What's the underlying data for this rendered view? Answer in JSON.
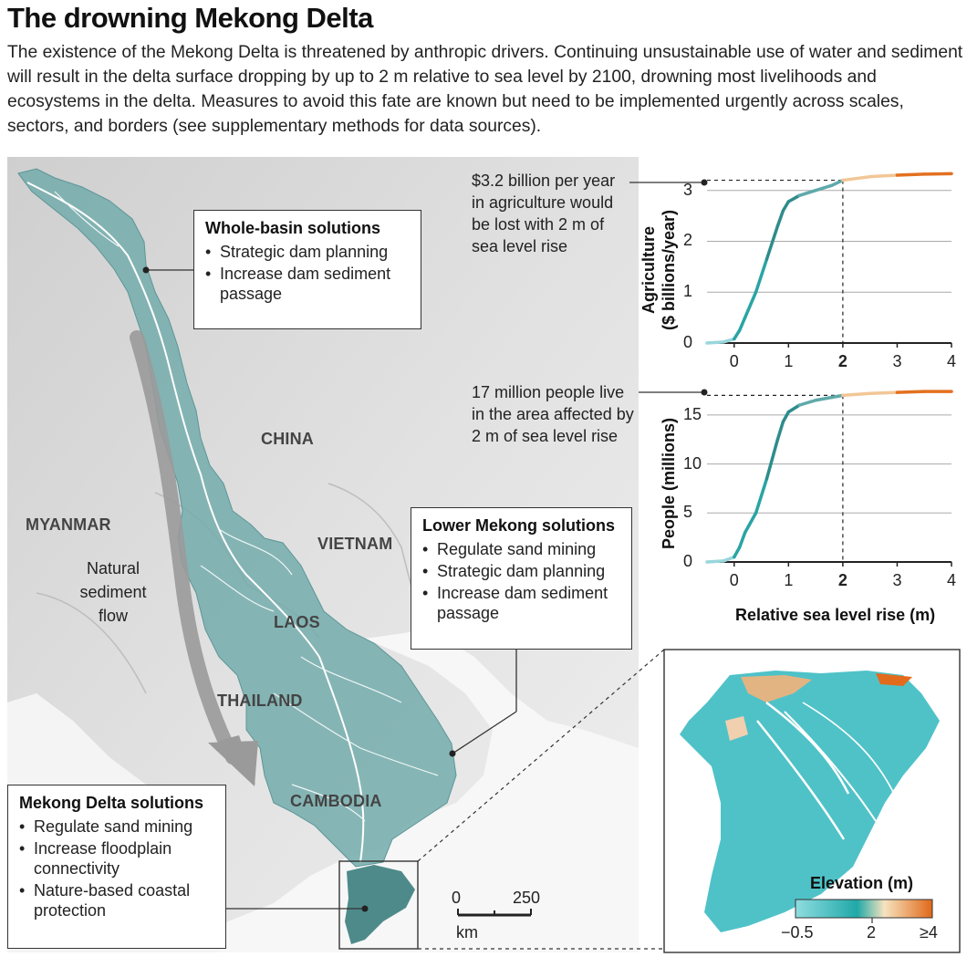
{
  "header": {
    "title": "The drowning Mekong Delta",
    "intro": "The existence of the Mekong Delta is threatened by anthropic drivers. Continuing unsustainable use of water and sediment will result in the delta surface dropping by up to 2 m relative  to sea level by 2100, drowning most livelihoods and ecosystems in the delta. Measures to avoid this fate are known but need to be implemented urgently across scales, sectors, and borders (see supplementary methods for data sources)."
  },
  "map": {
    "countries": {
      "china": "CHINA",
      "myanmar": "MYANMAR",
      "vietnam": "VIETNAM",
      "laos": "LAOS",
      "thailand": "THAILAND",
      "cambodia": "CAMBODIA"
    },
    "flow_label": [
      "Natural",
      "sediment",
      "flow"
    ],
    "scale": {
      "zero": "0",
      "max": "250",
      "unit": "km"
    },
    "colors": {
      "basin": "#6fa7a7",
      "land": "#dcdcdc",
      "arrow": "#9a9a9a",
      "delta": "#4f8a8a"
    }
  },
  "callouts": {
    "whole_basin": {
      "title": "Whole-basin solutions",
      "items": [
        "Strategic dam planning",
        "Increase dam sediment passage"
      ]
    },
    "lower_mekong": {
      "title": "Lower Mekong solutions",
      "items": [
        "Regulate sand mining",
        "Strategic dam planning",
        "Increase dam sediment passage"
      ]
    },
    "delta": {
      "title": "Mekong Delta solutions",
      "items": [
        "Regulate sand mining",
        "Increase floodplain connectivity",
        "Nature-based coastal protection"
      ]
    }
  },
  "charts": {
    "agriculture_note": [
      "$3.2 billion per year",
      "in agriculture would",
      "be lost with 2 m of",
      "sea level rise"
    ],
    "people_note": [
      "17 million people live",
      "in the area affected by",
      "2 m of sea level rise"
    ],
    "agriculture_ylabel": [
      "Agriculture",
      "($ billions/year)"
    ],
    "people_ylabel": "People (millions)",
    "xlabel": "Relative sea level rise (m)",
    "x_ticks": [
      "0",
      "1",
      "2",
      "3",
      "4"
    ],
    "agriculture_yticks": [
      "0",
      "1",
      "2",
      "3"
    ],
    "people_yticks": [
      "0",
      "5",
      "10",
      "15"
    ]
  },
  "chart_data": [
    {
      "type": "line",
      "title": "",
      "xlabel": "",
      "ylabel": "Agriculture ($ billions/year)",
      "xlim": [
        -0.5,
        4
      ],
      "ylim": [
        0,
        3.3
      ],
      "x": [
        -0.5,
        -0.2,
        0,
        0.1,
        0.2,
        0.4,
        0.6,
        0.8,
        0.9,
        1.0,
        1.2,
        1.5,
        1.8,
        2.0,
        2.5,
        3.0,
        3.5,
        4.0
      ],
      "y": [
        0.0,
        0.02,
        0.08,
        0.25,
        0.5,
        1.0,
        1.65,
        2.3,
        2.6,
        2.78,
        2.9,
        3.0,
        3.1,
        3.2,
        3.27,
        3.3,
        3.32,
        3.33
      ],
      "annotations": [
        "2 m marker: 3.2"
      ]
    },
    {
      "type": "line",
      "title": "",
      "xlabel": "Relative sea level rise (m)",
      "ylabel": "People (millions)",
      "xlim": [
        -0.5,
        4
      ],
      "ylim": [
        0,
        17.5
      ],
      "x": [
        -0.5,
        -0.2,
        0,
        0.1,
        0.2,
        0.4,
        0.6,
        0.8,
        0.9,
        1.0,
        1.2,
        1.5,
        1.8,
        2.0,
        2.5,
        3.0,
        3.5,
        4.0
      ],
      "y": [
        0.0,
        0.1,
        0.5,
        1.5,
        3.0,
        5.0,
        8.5,
        12.5,
        14.3,
        15.3,
        16.0,
        16.5,
        16.8,
        17.0,
        17.2,
        17.3,
        17.4,
        17.4
      ],
      "annotations": [
        "2 m marker: 17"
      ]
    }
  ],
  "legend": {
    "title": "Elevation (m)",
    "ticks": [
      "−0.5",
      "2",
      "≥4"
    ],
    "colors": [
      "#6ed0d6",
      "#2fb0b0",
      "#f4d7a8",
      "#e36b1c"
    ]
  }
}
